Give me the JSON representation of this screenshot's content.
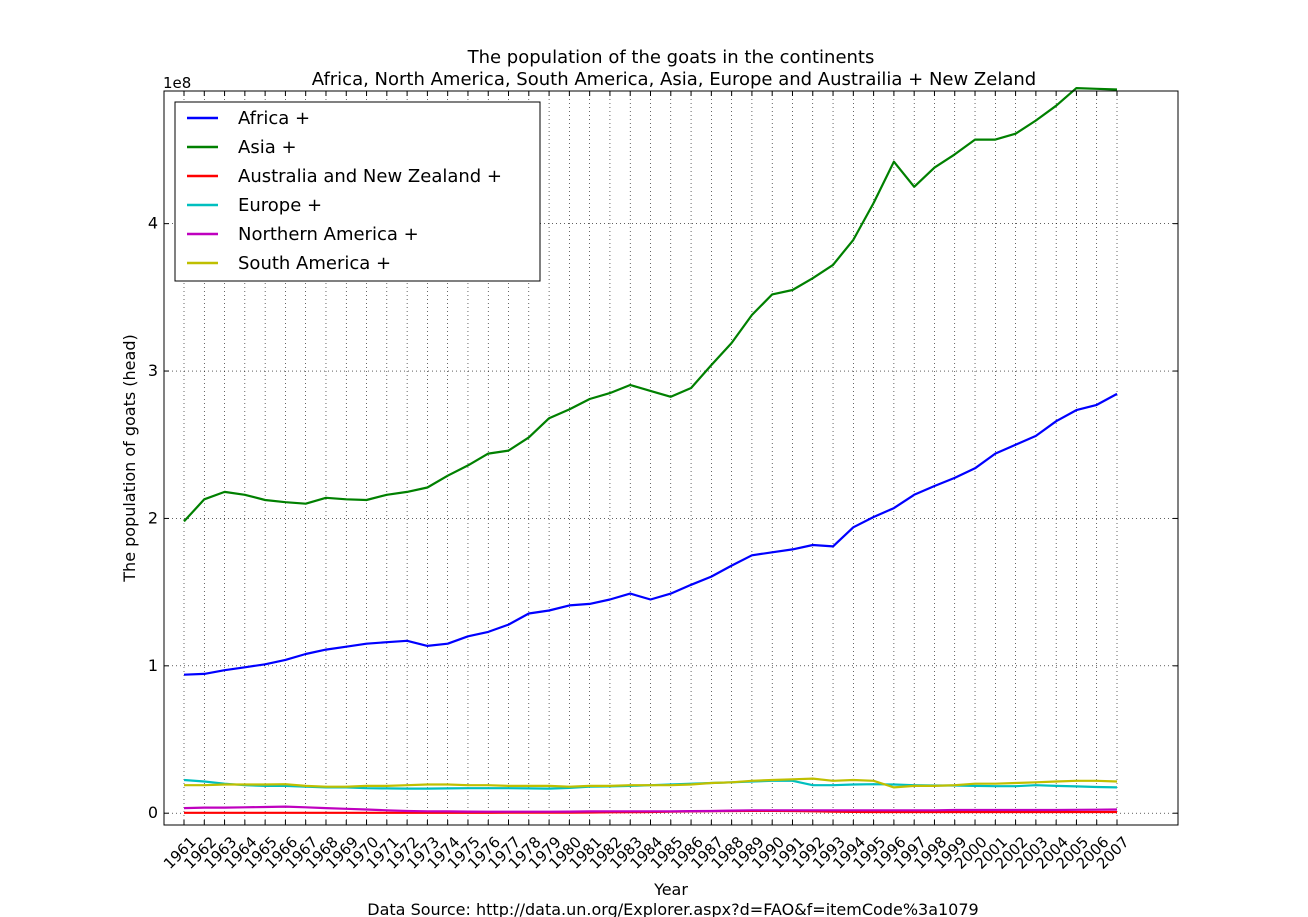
{
  "chart_data": {
    "type": "line",
    "title": "The population of the goats in the continents",
    "subtitle": "Africa, North America, South America, Asia, Europe and Austrailia + New Zeland",
    "xlabel": "Year",
    "ylabel": "The population of goats (head)",
    "y_offset_label": "1e8",
    "source_note": "Data Source: http://data.un.org/Explorer.aspx?d=FAO&f=itemCode%3a1079",
    "x": [
      1961,
      1962,
      1963,
      1964,
      1965,
      1966,
      1967,
      1968,
      1969,
      1970,
      1971,
      1972,
      1973,
      1974,
      1975,
      1976,
      1977,
      1978,
      1979,
      1980,
      1981,
      1982,
      1983,
      1984,
      1985,
      1986,
      1987,
      1988,
      1989,
      1990,
      1991,
      1992,
      1993,
      1994,
      1995,
      1996,
      1997,
      1998,
      1999,
      2000,
      2001,
      2002,
      2003,
      2004,
      2005,
      2006,
      2007
    ],
    "ylim": [
      -0.08,
      4.9
    ],
    "y_ticks": [
      0,
      1,
      2,
      3,
      4
    ],
    "y_tick_labels": [
      "0",
      "1",
      "2",
      "3",
      "4"
    ],
    "grid": true,
    "legend_position": "top-left",
    "series": [
      {
        "name": "Africa +",
        "color": "#0000ff",
        "values": [
          0.94,
          0.945,
          0.97,
          0.99,
          1.01,
          1.04,
          1.08,
          1.11,
          1.13,
          1.15,
          1.16,
          1.17,
          1.135,
          1.15,
          1.2,
          1.23,
          1.28,
          1.355,
          1.375,
          1.41,
          1.42,
          1.45,
          1.49,
          1.45,
          1.49,
          1.55,
          1.605,
          1.68,
          1.75,
          1.77,
          1.79,
          1.82,
          1.81,
          1.94,
          2.01,
          2.07,
          2.16,
          2.22,
          2.275,
          2.34,
          2.44,
          2.5,
          2.56,
          2.66,
          2.735,
          2.77,
          2.845
        ]
      },
      {
        "name": "Asia +",
        "color": "#008000",
        "values": [
          1.98,
          2.13,
          2.18,
          2.16,
          2.125,
          2.11,
          2.1,
          2.14,
          2.13,
          2.125,
          2.16,
          2.18,
          2.21,
          2.29,
          2.36,
          2.44,
          2.46,
          2.55,
          2.68,
          2.74,
          2.81,
          2.85,
          2.905,
          2.865,
          2.825,
          2.885,
          3.04,
          3.19,
          3.38,
          3.52,
          3.55,
          3.63,
          3.72,
          3.89,
          4.14,
          4.42,
          4.25,
          4.38,
          4.47,
          4.57,
          4.57,
          4.61,
          4.7,
          4.8,
          4.92,
          4.915,
          4.91
        ]
      },
      {
        "name": "Australia and New Zealand +",
        "color": "#ff0000",
        "values": [
          0.003,
          0.003,
          0.003,
          0.003,
          0.003,
          0.003,
          0.003,
          0.003,
          0.003,
          0.003,
          0.003,
          0.003,
          0.003,
          0.003,
          0.003,
          0.003,
          0.004,
          0.004,
          0.004,
          0.004,
          0.005,
          0.006,
          0.007,
          0.008,
          0.01,
          0.012,
          0.014,
          0.015,
          0.016,
          0.016,
          0.015,
          0.013,
          0.011,
          0.009,
          0.008,
          0.008,
          0.008,
          0.008,
          0.008,
          0.008,
          0.008,
          0.008,
          0.008,
          0.008,
          0.008,
          0.008,
          0.008
        ]
      },
      {
        "name": "Europe +",
        "color": "#00bfbf",
        "values": [
          0.225,
          0.215,
          0.2,
          0.19,
          0.185,
          0.185,
          0.18,
          0.175,
          0.175,
          0.17,
          0.168,
          0.167,
          0.167,
          0.168,
          0.17,
          0.17,
          0.17,
          0.168,
          0.167,
          0.172,
          0.18,
          0.182,
          0.185,
          0.19,
          0.195,
          0.2,
          0.205,
          0.21,
          0.215,
          0.22,
          0.22,
          0.19,
          0.19,
          0.195,
          0.197,
          0.195,
          0.19,
          0.188,
          0.188,
          0.185,
          0.183,
          0.183,
          0.19,
          0.185,
          0.182,
          0.178,
          0.175
        ]
      },
      {
        "name": "Northern America +",
        "color": "#bf00bf",
        "values": [
          0.035,
          0.038,
          0.038,
          0.04,
          0.042,
          0.045,
          0.04,
          0.035,
          0.03,
          0.025,
          0.02,
          0.015,
          0.013,
          0.012,
          0.011,
          0.01,
          0.01,
          0.01,
          0.01,
          0.011,
          0.012,
          0.013,
          0.013,
          0.013,
          0.013,
          0.014,
          0.015,
          0.018,
          0.02,
          0.02,
          0.02,
          0.02,
          0.02,
          0.02,
          0.02,
          0.02,
          0.02,
          0.02,
          0.022,
          0.022,
          0.022,
          0.022,
          0.022,
          0.022,
          0.023,
          0.024,
          0.025
        ]
      },
      {
        "name": "South America +",
        "color": "#bfbf00",
        "values": [
          0.19,
          0.19,
          0.195,
          0.195,
          0.195,
          0.197,
          0.185,
          0.18,
          0.18,
          0.185,
          0.185,
          0.19,
          0.195,
          0.195,
          0.19,
          0.19,
          0.185,
          0.185,
          0.185,
          0.18,
          0.185,
          0.185,
          0.19,
          0.19,
          0.19,
          0.195,
          0.205,
          0.21,
          0.22,
          0.225,
          0.23,
          0.235,
          0.22,
          0.225,
          0.22,
          0.175,
          0.185,
          0.185,
          0.19,
          0.2,
          0.2,
          0.205,
          0.21,
          0.215,
          0.22,
          0.22,
          0.215
        ]
      }
    ]
  }
}
